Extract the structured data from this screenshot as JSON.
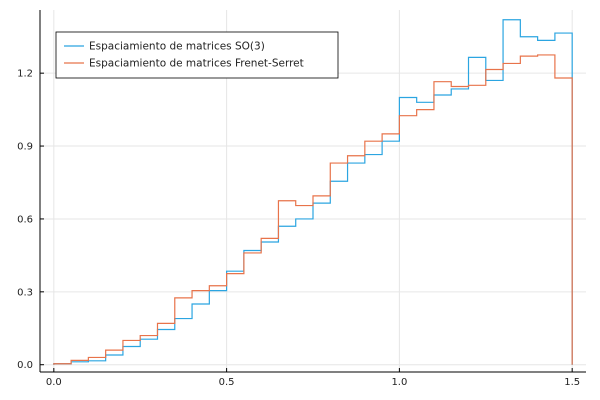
{
  "chart_data": {
    "type": "line",
    "drawstyle": "step-post",
    "title": "",
    "xlabel": "",
    "ylabel": "",
    "xlim": [
      -0.04,
      1.54
    ],
    "ylim": [
      -0.03,
      1.46
    ],
    "xticks": [
      0.0,
      0.5,
      1.0,
      1.5
    ],
    "yticks": [
      0.0,
      0.3,
      0.6,
      0.9,
      1.2
    ],
    "xtick_labels": [
      "0.0",
      "0.5",
      "1.0",
      "1.5"
    ],
    "ytick_labels": [
      "0.0",
      "0.3",
      "0.6",
      "0.9",
      "1.2"
    ],
    "grid": true,
    "legend_position": "top-left",
    "bin_edges": [
      0.0,
      0.05,
      0.1,
      0.15,
      0.2,
      0.25,
      0.3,
      0.35,
      0.4,
      0.45,
      0.5,
      0.55,
      0.6,
      0.65,
      0.7,
      0.75,
      0.8,
      0.85,
      0.9,
      0.95,
      1.0,
      1.05,
      1.1,
      1.15,
      1.2,
      1.25,
      1.3,
      1.35,
      1.4,
      1.45,
      1.5
    ],
    "series": [
      {
        "name": "Espaciamiento de matrices SO(3)",
        "color": "#2ba5e1",
        "values": [
          0.004,
          0.012,
          0.016,
          0.04,
          0.075,
          0.105,
          0.145,
          0.19,
          0.25,
          0.305,
          0.385,
          0.47,
          0.505,
          0.57,
          0.6,
          0.665,
          0.755,
          0.83,
          0.865,
          0.92,
          1.1,
          1.08,
          1.11,
          1.135,
          1.265,
          1.17,
          1.42,
          1.35,
          1.335,
          1.365
        ]
      },
      {
        "name": "Espaciamiento de matrices Frenet-Serret",
        "color": "#e8734a",
        "values": [
          0.004,
          0.018,
          0.03,
          0.06,
          0.1,
          0.12,
          0.17,
          0.275,
          0.305,
          0.325,
          0.375,
          0.46,
          0.52,
          0.675,
          0.655,
          0.695,
          0.83,
          0.86,
          0.92,
          0.95,
          1.025,
          1.05,
          1.165,
          1.145,
          1.15,
          1.215,
          1.24,
          1.27,
          1.275,
          1.18
        ]
      }
    ]
  }
}
